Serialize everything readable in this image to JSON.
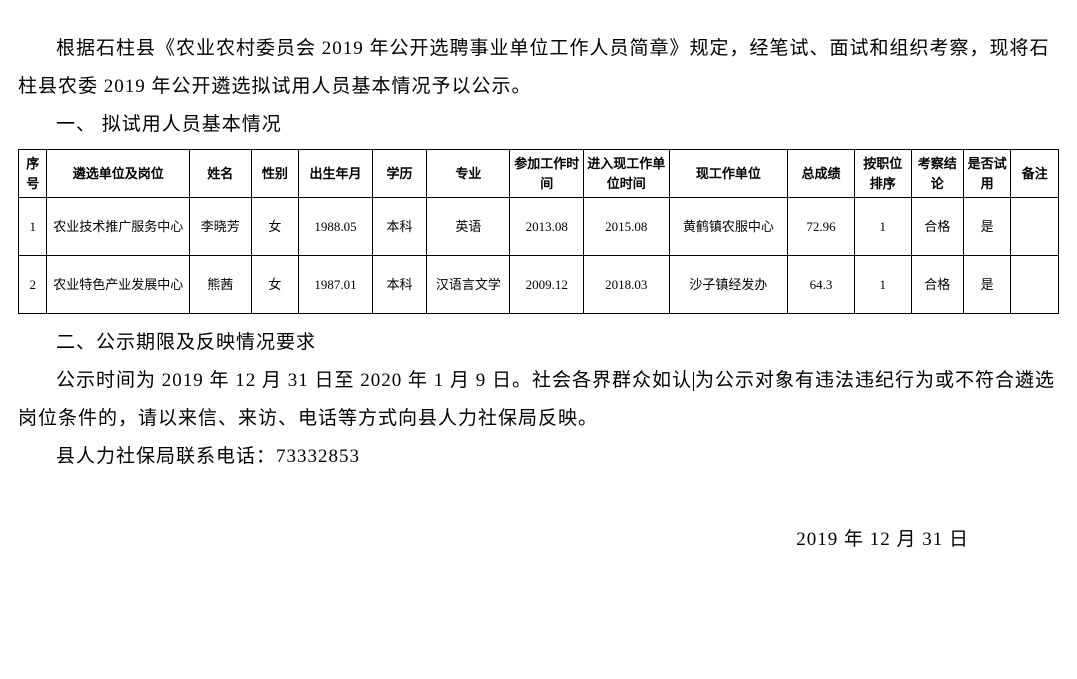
{
  "intro": {
    "para1": "根据石柱县《农业农村委员会 2019 年公开选聘事业单位工作人员简章》规定，经笔试、面试和组织考察，现将石柱县农委 2019 年公开遴选拟试用人员基本情况予以公示。"
  },
  "section1": {
    "header": "一、 拟试用人员基本情况"
  },
  "table": {
    "headers": {
      "seq": "序号",
      "unit": "遴选单位及岗位",
      "name": "姓名",
      "gender": "性别",
      "birth": "出生年月",
      "edu": "学历",
      "major": "专业",
      "worktime": "参加工作时间",
      "currenttime": "进入现工作单位时间",
      "currentunit": "现工作单位",
      "score": "总成绩",
      "rank": "按职位排序",
      "result": "考察结论",
      "trial": "是否试用",
      "note": "备注"
    },
    "rows": [
      {
        "seq": "1",
        "unit": "农业技术推广服务中心",
        "name": "李晓芳",
        "gender": "女",
        "birth": "1988.05",
        "edu": "本科",
        "major": "英语",
        "worktime": "2013.08",
        "currenttime": "2015.08",
        "currentunit": "黄鹤镇农服中心",
        "score": "72.96",
        "rank": "1",
        "result": "合格",
        "trial": "是",
        "note": ""
      },
      {
        "seq": "2",
        "unit": "农业特色产业发展中心",
        "name": "熊茜",
        "gender": "女",
        "birth": "1987.01",
        "edu": "本科",
        "major": "汉语言文学",
        "worktime": "2009.12",
        "currenttime": "2018.03",
        "currentunit": "沙子镇经发办",
        "score": "64.3",
        "rank": "1",
        "result": "合格",
        "trial": "是",
        "note": ""
      }
    ]
  },
  "section2": {
    "header": "二、公示期限及反映情况要求",
    "para_a": "公示时间为 2019 年 12 月 31 日至 2020 年 1 月 9 日。社会各界群众如认",
    "para_b": "为公示对象有违法违纪行为或不符合遴选岗位条件的，请以来信、来访、电话等方式向县人力社保局反映。",
    "contact": "县人力社保局联系电话：73332853"
  },
  "date": "2019 年 12 月 31 日",
  "styling": {
    "body_font_size": 19,
    "table_font_size": 13,
    "text_color": "#000000",
    "background_color": "#ffffff",
    "border_color": "#000000",
    "line_height": 2.0
  }
}
